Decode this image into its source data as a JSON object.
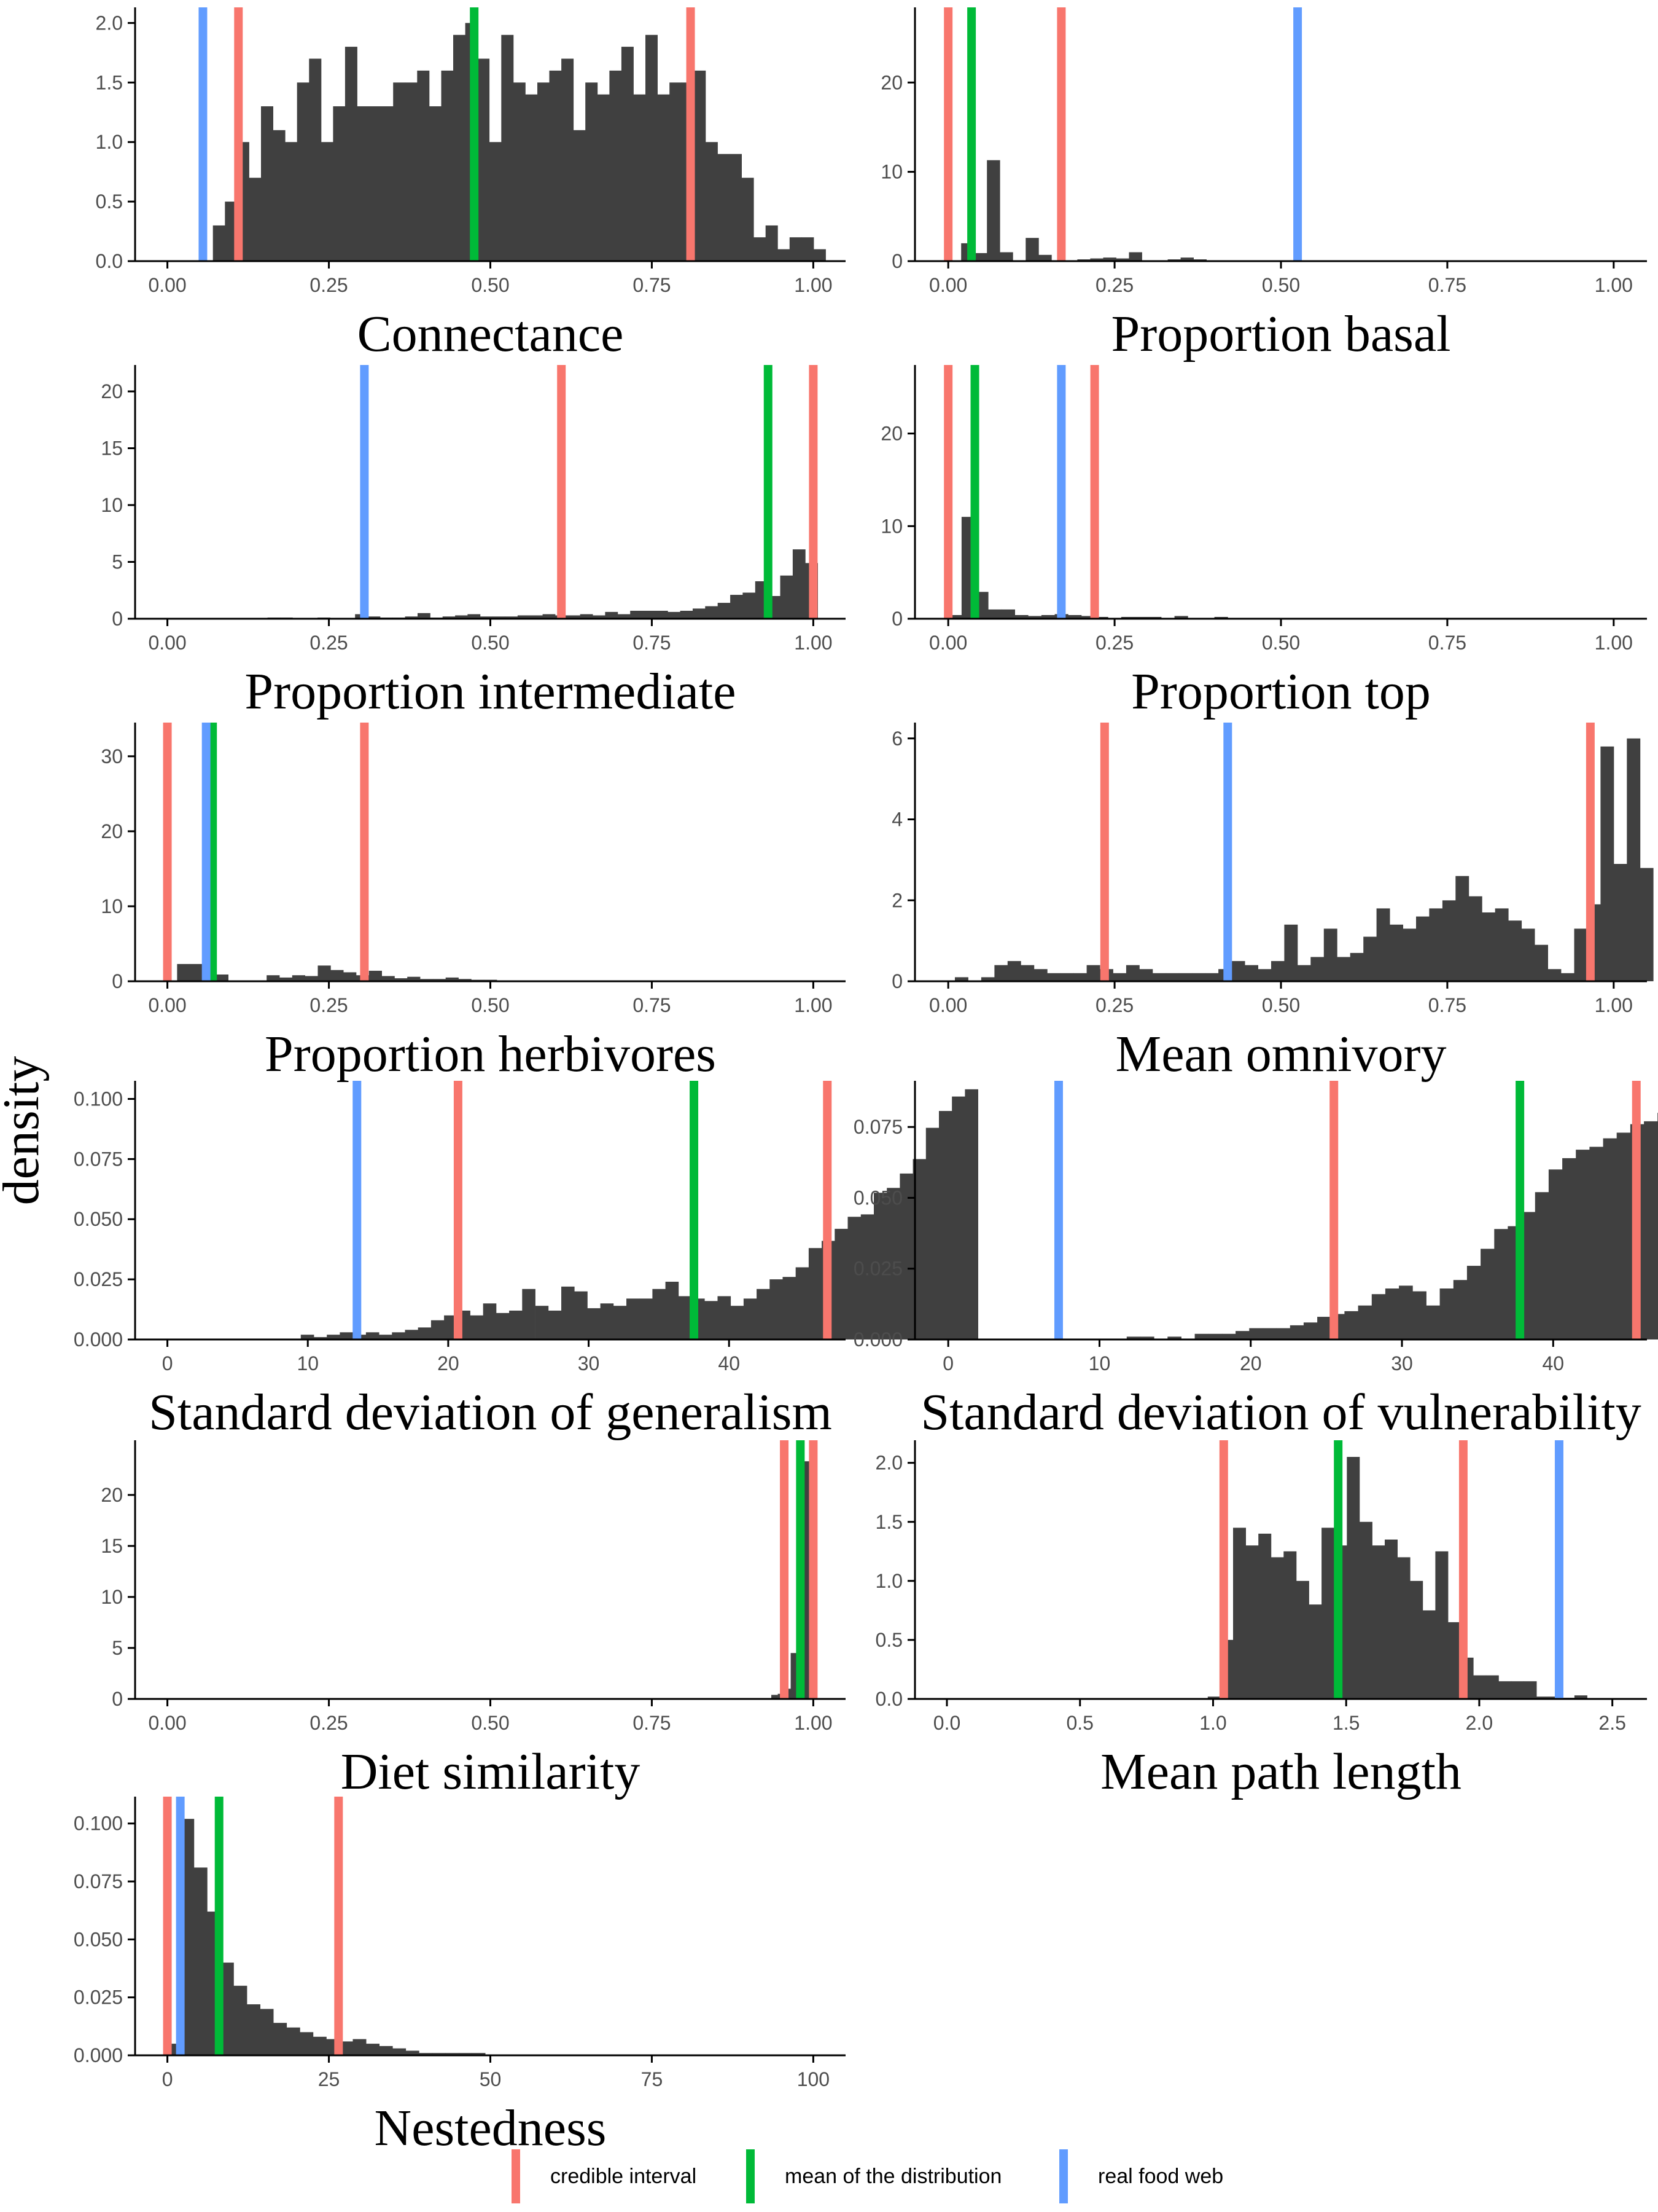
{
  "colors": {
    "credible_interval": "#F8766D",
    "mean": "#00BA38",
    "real": "#619CFF",
    "bars": "#404040",
    "axis": "#000000"
  },
  "y_label": "density",
  "legend": [
    {
      "key": "ci",
      "label": "credible interval",
      "color": "#F8766D"
    },
    {
      "key": "mean",
      "label": "mean of the distribution",
      "color": "#00BA38"
    },
    {
      "key": "real",
      "label": "real food web",
      "color": "#619CFF"
    }
  ],
  "chart_data": [
    {
      "type": "bar",
      "title": "Connectance",
      "xlim": [
        -0.05,
        1.05
      ],
      "ylim": [
        0,
        2.1
      ],
      "xticks": [
        0,
        0.25,
        0.5,
        0.75,
        1.0
      ],
      "xtick_labels": [
        "0.00",
        "0.25",
        "0.50",
        "0.75",
        "1.00"
      ],
      "yticks": [
        0,
        0.5,
        1.0,
        1.5,
        2.0
      ],
      "ytick_labels": [
        "0.0",
        "0.5",
        "1.0",
        "1.5",
        "2.0"
      ],
      "bin_start": 0.0705,
      "bin_width": 0.0186,
      "values": [
        0.3,
        0.5,
        1.0,
        0.7,
        1.3,
        1.1,
        1.0,
        1.5,
        1.7,
        1.0,
        1.3,
        1.8,
        1.3,
        1.3,
        1.3,
        1.5,
        1.5,
        1.6,
        1.3,
        1.6,
        1.9,
        2.0,
        1.7,
        1.0,
        1.9,
        1.5,
        1.4,
        1.5,
        1.6,
        1.7,
        1.1,
        1.5,
        1.4,
        1.6,
        1.8,
        1.4,
        1.9,
        1.4,
        1.5,
        1.5,
        1.6,
        1.0,
        0.9,
        0.9,
        0.7,
        0.2,
        0.3,
        0.1,
        0.2,
        0.2,
        0.1
      ],
      "vlines": {
        "ci": [
          0.11,
          0.81
        ],
        "mean": [
          0.475
        ],
        "real": [
          0.055
        ]
      }
    },
    {
      "type": "bar",
      "title": "Proportion basal",
      "xlim": [
        -0.05,
        1.05
      ],
      "ylim": [
        0,
        28
      ],
      "xticks": [
        0,
        0.25,
        0.5,
        0.75,
        1.0
      ],
      "xtick_labels": [
        "0.00",
        "0.25",
        "0.50",
        "0.75",
        "1.00"
      ],
      "yticks": [
        0,
        10,
        20
      ],
      "ytick_labels": [
        "0",
        "10",
        "20"
      ],
      "bin_start": 0.0,
      "bin_width": 0.0194,
      "values": [
        0,
        2.0,
        0.9,
        11.3,
        1.0,
        0,
        2.6,
        0.7,
        0,
        0,
        0.2,
        0.3,
        0.4,
        0.3,
        1.0,
        0.1,
        0.1,
        0.2,
        0.4,
        0.2,
        0.1,
        0.1,
        0.1,
        0.1
      ],
      "vlines": {
        "ci": [
          0.0,
          0.17
        ],
        "mean": [
          0.035
        ],
        "real": [
          0.525
        ]
      }
    },
    {
      "type": "bar",
      "title": "Proportion intermediate",
      "xlim": [
        -0.05,
        1.05
      ],
      "ylim": [
        0,
        22
      ],
      "xticks": [
        0,
        0.25,
        0.5,
        0.75,
        1.0
      ],
      "xtick_labels": [
        "0.00",
        "0.25",
        "0.50",
        "0.75",
        "1.00"
      ],
      "yticks": [
        0,
        5,
        10,
        15,
        20
      ],
      "ytick_labels": [
        "0",
        "5",
        "10",
        "15",
        "20"
      ],
      "bin_start": 0.155,
      "bin_width": 0.01936,
      "values": [
        0.1,
        0.1,
        0,
        0,
        0.1,
        0,
        0,
        0.4,
        0.2,
        0.1,
        0.1,
        0.2,
        0.5,
        0.1,
        0.2,
        0.3,
        0.4,
        0.2,
        0.2,
        0.2,
        0.3,
        0.3,
        0.4,
        0.3,
        0.3,
        0.4,
        0.3,
        0.6,
        0.4,
        0.7,
        0.7,
        0.7,
        0.6,
        0.7,
        0.9,
        1.1,
        1.4,
        2.1,
        2.3,
        3.3,
        2.0,
        3.8,
        6.1,
        4.9
      ],
      "vlines": {
        "ci": [
          0.61,
          1.0
        ],
        "mean": [
          0.93
        ],
        "real": [
          0.305
        ]
      }
    },
    {
      "type": "bar",
      "title": "Proportion top",
      "xlim": [
        -0.05,
        1.05
      ],
      "ylim": [
        0,
        27
      ],
      "xticks": [
        0,
        0.25,
        0.5,
        0.75,
        1.0
      ],
      "xtick_labels": [
        "0.00",
        "0.25",
        "0.50",
        "0.75",
        "1.00"
      ],
      "yticks": [
        0,
        10,
        20
      ],
      "ytick_labels": [
        "0",
        "10",
        "20"
      ],
      "bin_start": 0.0,
      "bin_width": 0.02,
      "values": [
        0.4,
        11.0,
        2.9,
        1.0,
        1.0,
        0.4,
        0.3,
        0.4,
        0.5,
        0.4,
        0.3,
        0.2,
        0.1,
        0.2,
        0.2,
        0.2,
        0.1,
        0.3,
        0.1,
        0.1,
        0.2,
        0.1,
        0.1,
        0.1,
        0.1
      ],
      "vlines": {
        "ci": [
          0.0,
          0.22
        ],
        "mean": [
          0.04
        ],
        "real": [
          0.17
        ]
      }
    },
    {
      "type": "bar",
      "title": "Proportion herbivores",
      "xlim": [
        -0.05,
        1.05
      ],
      "ylim": [
        0,
        34
      ],
      "xticks": [
        0,
        0.25,
        0.5,
        0.75,
        1.0
      ],
      "xtick_labels": [
        "0.00",
        "0.25",
        "0.50",
        "0.75",
        "1.00"
      ],
      "yticks": [
        0,
        10,
        20,
        30
      ],
      "ytick_labels": [
        "0",
        "10",
        "20",
        "30"
      ],
      "bin_start": 0.015,
      "bin_width": 0.0198,
      "values": [
        2.3,
        2.3,
        2.0,
        0.9,
        0,
        0,
        0,
        0.8,
        0.5,
        0.8,
        0.7,
        2.1,
        1.5,
        1.2,
        0.8,
        1.4,
        0.7,
        0.4,
        0.6,
        0.3,
        0.3,
        0.5,
        0.3,
        0.2,
        0.2,
        0.1,
        0.1,
        0.1,
        0.1
      ],
      "vlines": {
        "ci": [
          0.0,
          0.305
        ],
        "mean": [
          0.07
        ],
        "real": [
          0.06
        ]
      }
    },
    {
      "type": "bar",
      "title": "Mean omnivory",
      "xlim": [
        -0.05,
        1.05
      ],
      "ylim": [
        0,
        6.3
      ],
      "xticks": [
        0,
        0.25,
        0.5,
        0.75,
        1.0
      ],
      "xtick_labels": [
        "0.00",
        "0.25",
        "0.50",
        "0.75",
        "1.00"
      ],
      "yticks": [
        0,
        2,
        4,
        6
      ],
      "ytick_labels": [
        "0",
        "2",
        "4",
        "6"
      ],
      "bin_start": 0.01,
      "bin_width": 0.0198,
      "values": [
        0.1,
        0,
        0.1,
        0.4,
        0.5,
        0.4,
        0.3,
        0.2,
        0.2,
        0.2,
        0.4,
        0.3,
        0.2,
        0.4,
        0.3,
        0.2,
        0.2,
        0.2,
        0.2,
        0.2,
        0.3,
        0.5,
        0.4,
        0.3,
        0.5,
        1.4,
        0.4,
        0.6,
        1.3,
        0.6,
        0.7,
        1.1,
        1.8,
        1.4,
        1.3,
        1.6,
        1.8,
        2.0,
        2.6,
        2.1,
        1.7,
        1.8,
        1.5,
        1.3,
        0.9,
        0.3,
        0.2,
        1.3,
        1.9,
        5.8,
        2.9,
        6.0,
        2.8
      ],
      "vlines": {
        "ci": [
          0.235,
          0.965
        ],
        "mean": [],
        "real": [
          0.42
        ]
      }
    },
    {
      "type": "bar",
      "title": "Standard deviation of generalism",
      "xlim": [
        -2.3,
        48.3
      ],
      "ylim": [
        0,
        0.106
      ],
      "xticks": [
        0,
        10,
        20,
        30,
        40
      ],
      "xtick_labels": [
        "0",
        "10",
        "20",
        "30",
        "40"
      ],
      "yticks": [
        0,
        0.025,
        0.05,
        0.075,
        0.1
      ],
      "ytick_labels": [
        "0.000",
        "0.025",
        "0.050",
        "0.075",
        "0.100"
      ],
      "bin_start": 9.5,
      "bin_width": 0.9275,
      "values": [
        0.002,
        0.001,
        0.002,
        0.003,
        0.002,
        0.003,
        0.002,
        0.003,
        0.004,
        0.005,
        0.008,
        0.01,
        0.012,
        0.01,
        0.015,
        0.011,
        0.012,
        0.021,
        0.014,
        0.012,
        0.022,
        0.02,
        0.013,
        0.015,
        0.014,
        0.017,
        0.017,
        0.021,
        0.024,
        0.018,
        0.017,
        0.016,
        0.018,
        0.014,
        0.017,
        0.021,
        0.025,
        0.026,
        0.03,
        0.038,
        0.041,
        0.046,
        0.051,
        0.052,
        0.061,
        0.063,
        0.069,
        0.075,
        0.088,
        0.095,
        0.101,
        0.104
      ],
      "vlines": {
        "ci": [
          20.7,
          47.0
        ],
        "mean": [
          37.5
        ],
        "real": [
          13.5
        ]
      }
    },
    {
      "type": "bar",
      "title": "Standard deviation of vulnerability",
      "xlim": [
        -2.2,
        46.2
      ],
      "ylim": [
        0,
        0.09
      ],
      "xticks": [
        0,
        10,
        20,
        30,
        40
      ],
      "xtick_labels": [
        "0",
        "10",
        "20",
        "30",
        "40"
      ],
      "yticks": [
        0,
        0.025,
        0.05,
        0.075
      ],
      "ytick_labels": [
        "0.000",
        "0.025",
        "0.050",
        "0.075"
      ],
      "bin_start": 11.8,
      "bin_width": 0.9,
      "values": [
        0.001,
        0.001,
        0,
        0.001,
        0,
        0.002,
        0.002,
        0.002,
        0.003,
        0.004,
        0.004,
        0.004,
        0.005,
        0.006,
        0.008,
        0.009,
        0.01,
        0.012,
        0.016,
        0.018,
        0.019,
        0.017,
        0.012,
        0.018,
        0.021,
        0.026,
        0.032,
        0.039,
        0.04,
        0.045,
        0.052,
        0.06,
        0.064,
        0.067,
        0.068,
        0.071,
        0.073,
        0.076,
        0.077,
        0.08,
        0.086,
        0.088,
        0.085,
        0.075,
        0.06
      ],
      "vlines": {
        "ci": [
          25.5,
          45.5
        ],
        "mean": [
          37.8
        ],
        "real": [
          7.3
        ]
      }
    },
    {
      "type": "bar",
      "title": "Diet similarity",
      "xlim": [
        -0.05,
        1.05
      ],
      "ylim": [
        0,
        25
      ],
      "xticks": [
        0,
        0.25,
        0.5,
        0.75,
        1.0
      ],
      "xtick_labels": [
        "0.00",
        "0.25",
        "0.50",
        "0.75",
        "1.00"
      ],
      "yticks": [
        0,
        5,
        10,
        15,
        20
      ],
      "ytick_labels": [
        "0",
        "5",
        "10",
        "15",
        "20"
      ],
      "bin_start": 0.935,
      "bin_width": 0.01,
      "values": [
        0.4,
        0.5,
        1.0,
        4.5,
        22.4,
        23.3,
        24.5
      ],
      "vlines": {
        "ci": [
          0.955,
          1.0
        ],
        "mean": [
          0.98
        ],
        "real": []
      }
    },
    {
      "type": "bar",
      "title": "Mean path length",
      "xlim": [
        -0.12,
        2.63
      ],
      "ylim": [
        0,
        2.16
      ],
      "xticks": [
        0,
        0.5,
        1.0,
        1.5,
        2.0,
        2.5
      ],
      "xtick_labels": [
        "0.0",
        "0.5",
        "1.0",
        "1.5",
        "2.0",
        "2.5"
      ],
      "yticks": [
        0,
        0.5,
        1.0,
        1.5,
        2.0
      ],
      "ytick_labels": [
        "0.0",
        "0.5",
        "1.0",
        "1.5",
        "2.0"
      ],
      "bin_start": 0.98,
      "bin_width": 0.0475,
      "values": [
        0.02,
        0.5,
        1.45,
        1.3,
        1.4,
        1.2,
        1.25,
        1.0,
        0.8,
        1.45,
        1.3,
        2.05,
        1.5,
        1.3,
        1.35,
        1.2,
        1.0,
        0.75,
        1.25,
        0.65,
        0.35,
        0.2,
        0.2,
        0.15,
        0.15,
        0.15,
        0.02,
        0.02,
        0.01,
        0.03
      ],
      "vlines": {
        "ci": [
          1.04,
          1.94
        ],
        "mean": [
          1.47
        ],
        "real": [
          2.3
        ]
      }
    },
    {
      "type": "bar",
      "title": "Nestedness",
      "xlim": [
        -5,
        105
      ],
      "ylim": [
        0,
        0.11
      ],
      "xticks": [
        0,
        25,
        50,
        75,
        100
      ],
      "xtick_labels": [
        "0",
        "25",
        "50",
        "75",
        "100"
      ],
      "yticks": [
        0,
        0.025,
        0.05,
        0.075,
        0.1
      ],
      "ytick_labels": [
        "0.000",
        "0.025",
        "0.050",
        "0.075",
        "0.100"
      ],
      "bin_start": 0.0,
      "bin_width": 2.05,
      "values": [
        0.005,
        0.102,
        0.081,
        0.062,
        0.04,
        0.03,
        0.022,
        0.02,
        0.014,
        0.012,
        0.01,
        0.008,
        0.007,
        0.006,
        0.007,
        0.005,
        0.004,
        0.003,
        0.002,
        0.001,
        0.001,
        0.001,
        0.001,
        0.001
      ],
      "vlines": {
        "ci": [
          0.0,
          26.5
        ],
        "mean": [
          8.0
        ],
        "real": [
          2.0
        ]
      }
    }
  ]
}
